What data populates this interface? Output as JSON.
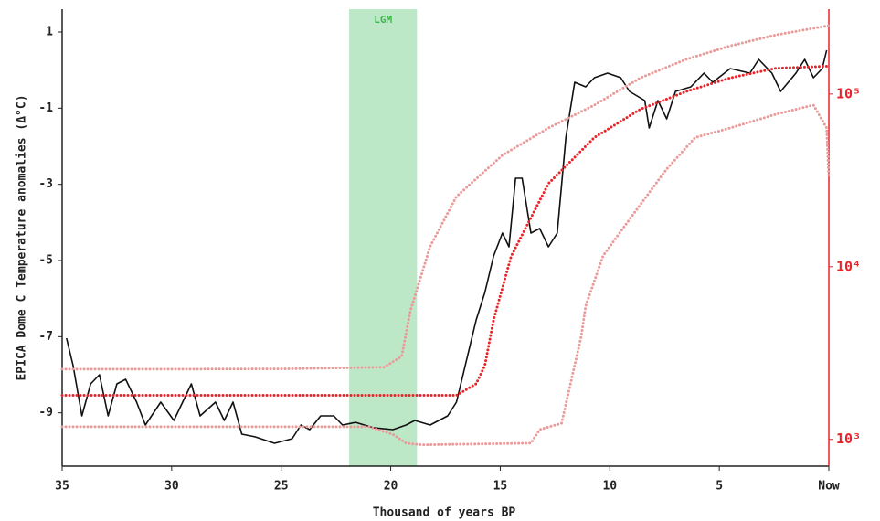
{
  "chart_data": {
    "type": "line",
    "xlabel": "Thousand of years BP",
    "ylabel": "EPICA Dome C Temperature anomalies (Δ°C)",
    "xlim": [
      35,
      0
    ],
    "xticks": [
      35,
      30,
      25,
      20,
      15,
      10,
      5,
      {
        "value": 0,
        "label": "Now"
      }
    ],
    "ylim": [
      -10.4,
      1.6
    ],
    "yticks": [
      1,
      -1,
      -3,
      -5,
      -7,
      -9
    ],
    "y2lim": [
      700,
      310000
    ],
    "y2scale": "log",
    "y2ticks": [
      {
        "value": 1000,
        "label": "10³"
      },
      {
        "value": 10000,
        "label": "10⁴"
      },
      {
        "value": 100000,
        "label": "10⁵"
      }
    ],
    "y2color": "#e8242a",
    "shaded_region": {
      "x": [
        21.9,
        18.8
      ],
      "label": "LGM",
      "color": "#bde8c8",
      "label_color": "#3db54a"
    },
    "series": [
      {
        "color": "#111111",
        "style": "solid",
        "x": [
          34.8,
          34.5,
          34.1,
          33.7,
          33.3,
          32.9,
          32.5,
          32.1,
          31.6,
          31.2,
          30.5,
          29.9,
          29.1,
          28.7,
          28.0,
          27.6,
          27.2,
          26.8,
          26.2,
          25.3,
          24.5,
          24.1,
          23.7,
          23.2,
          22.6,
          22.2,
          21.6,
          20.8,
          19.9,
          19.3,
          18.9,
          18.2,
          17.4,
          17.0,
          16.6,
          16.1,
          15.7,
          15.3,
          14.9,
          14.6,
          14.3,
          14.0,
          13.6,
          13.2,
          12.8,
          12.4,
          12.0,
          11.6,
          11.1,
          10.7,
          10.1,
          9.5,
          9.1,
          8.4,
          8.2,
          7.8,
          7.4,
          7.0,
          6.3,
          5.7,
          5.3,
          4.5,
          3.6,
          3.2,
          2.6,
          2.2,
          1.5,
          1.1,
          0.7,
          0.3,
          0.1
        ],
        "values": [
          -7.04,
          -7.76,
          -9.08,
          -8.24,
          -8.0,
          -9.08,
          -8.24,
          -8.12,
          -8.72,
          -9.32,
          -8.72,
          -9.2,
          -8.24,
          -9.08,
          -8.72,
          -9.2,
          -8.72,
          -9.56,
          -9.63,
          -9.8,
          -9.68,
          -9.32,
          -9.44,
          -9.08,
          -9.08,
          -9.32,
          -9.25,
          -9.39,
          -9.44,
          -9.32,
          -9.2,
          -9.32,
          -9.08,
          -8.72,
          -7.76,
          -6.56,
          -5.84,
          -4.88,
          -4.28,
          -4.64,
          -2.84,
          -2.84,
          -4.28,
          -4.16,
          -4.64,
          -4.28,
          -1.76,
          -0.32,
          -0.44,
          -0.2,
          -0.08,
          -0.2,
          -0.56,
          -0.8,
          -1.52,
          -0.8,
          -1.28,
          -0.56,
          -0.44,
          -0.08,
          -0.32,
          0.04,
          -0.08,
          0.28,
          -0.08,
          -0.56,
          -0.08,
          0.28,
          -0.2,
          0.04,
          0.52
        ]
      },
      {
        "color": "#e8242a",
        "style": "dotted",
        "axis": "y2",
        "x": [
          35,
          30,
          25,
          20,
          17.0,
          16.1,
          15.7,
          15.3,
          14.5,
          12.8,
          10.7,
          8.6,
          6.5,
          4.5,
          2.4,
          0
        ],
        "values": [
          1800,
          1800,
          1800,
          1800,
          1800,
          2100,
          2680,
          4930,
          11500,
          30300,
          56000,
          81600,
          103500,
          124000,
          141000,
          145000
        ]
      },
      {
        "color": "#eb9a9a",
        "style": "dotted",
        "axis": "y2",
        "x": [
          35,
          30,
          25,
          20.3,
          19.5,
          19.1,
          18.2,
          17.0,
          14.9,
          12.8,
          10.7,
          8.6,
          6.5,
          4.5,
          2.4,
          0
        ],
        "values": [
          2550,
          2550,
          2560,
          2620,
          3030,
          5560,
          13100,
          25500,
          44200,
          63600,
          86300,
          124000,
          159000,
          190000,
          220000,
          249000
        ]
      },
      {
        "color": "#eb9a9a",
        "style": "dotted",
        "axis": "y2",
        "x": [
          35,
          30,
          25,
          21,
          19.9,
          19.3,
          18.6,
          13.6,
          13.2,
          12.2,
          11.3,
          11.1,
          10.3,
          9.1,
          7.4,
          6.1,
          4.5,
          2.4,
          0.7,
          0.1,
          0
        ],
        "values": [
          1183,
          1183,
          1183,
          1183,
          1070,
          950,
          930,
          950,
          1140,
          1240,
          3960,
          5920,
          11600,
          18800,
          36800,
          56000,
          63600,
          76400,
          86300,
          63600,
          32500
        ]
      }
    ]
  }
}
